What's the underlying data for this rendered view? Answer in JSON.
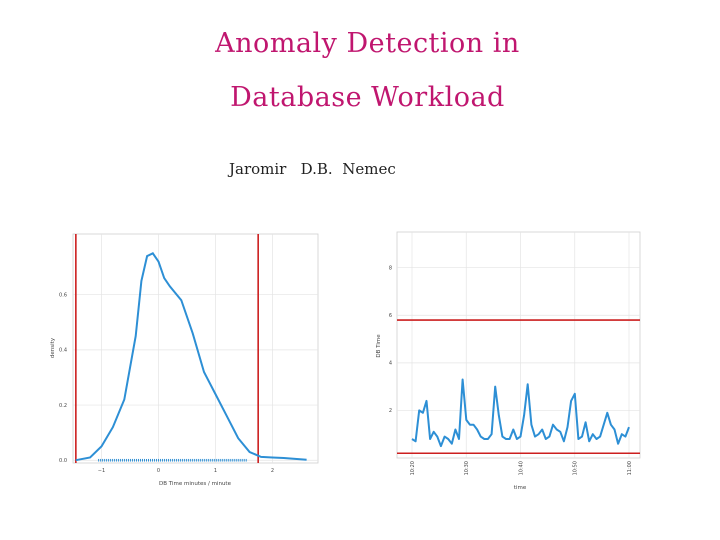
{
  "slide": {
    "title_line1": "Anomaly Detection in",
    "title_line2": "Database Workload",
    "author": "Jaromir   D.B.  Nemec"
  },
  "chart_data": [
    {
      "type": "line",
      "title": "",
      "xlabel": "DB Time minutes / minute",
      "ylabel": "density",
      "xlim": [
        -1.5,
        2.8
      ],
      "ylim": [
        -0.01,
        0.82
      ],
      "x_ticks": [
        -1,
        0,
        1,
        2
      ],
      "y_ticks": [
        0.0,
        0.2,
        0.4,
        0.6
      ],
      "y_tick_labels": [
        "0.0",
        "0.2",
        "0.4",
        "0.6"
      ],
      "grid": true,
      "series": [
        {
          "values_x": [
            -1.45,
            -1.2,
            -1.0,
            -0.8,
            -0.6,
            -0.4,
            -0.3,
            -0.2,
            -0.1,
            0.0,
            0.1,
            0.2,
            0.4,
            0.6,
            0.8,
            1.0,
            1.2,
            1.4,
            1.6,
            1.8,
            2.0,
            2.2,
            2.4,
            2.6
          ],
          "values_y": [
            0.0,
            0.01,
            0.05,
            0.12,
            0.22,
            0.45,
            0.65,
            0.74,
            0.75,
            0.72,
            0.66,
            0.63,
            0.58,
            0.46,
            0.32,
            0.24,
            0.16,
            0.08,
            0.03,
            0.012,
            0.01,
            0.008,
            0.005,
            0.002
          ]
        }
      ],
      "rug_x_range": [
        -1.05,
        1.55
      ],
      "reference_lines_x": [
        -1.45,
        1.75
      ],
      "colors": {
        "series": "#2d8fd5",
        "reference": "#cc1f1f",
        "grid": "#e4e4e4"
      }
    },
    {
      "type": "line",
      "title": "",
      "xlabel": "time",
      "ylabel": "DB Time",
      "ylim": [
        0,
        9.5
      ],
      "y_ticks": [
        2,
        4,
        6,
        8
      ],
      "y_tick_labels": [
        "2",
        "4",
        "6",
        "8"
      ],
      "x_tick_labels": [
        "10:20",
        "10:30",
        "10:40",
        "10:50",
        "11:00"
      ],
      "grid": true,
      "series": [
        {
          "values": [
            0.8,
            0.7,
            2.0,
            1.9,
            2.4,
            0.8,
            1.1,
            0.9,
            0.5,
            0.9,
            0.8,
            0.6,
            1.2,
            0.8,
            3.3,
            1.6,
            1.4,
            1.4,
            1.2,
            0.9,
            0.8,
            0.8,
            1.0,
            3.0,
            1.8,
            0.9,
            0.8,
            0.8,
            1.2,
            0.8,
            0.9,
            1.8,
            3.1,
            1.4,
            0.9,
            1.0,
            1.2,
            0.8,
            0.9,
            1.4,
            1.2,
            1.1,
            0.7,
            1.3,
            2.4,
            2.7,
            0.8,
            0.9,
            1.5,
            0.7,
            1.0,
            0.8,
            0.9,
            1.4,
            1.9,
            1.4,
            1.2,
            0.6,
            1.0,
            0.9,
            1.3
          ]
        }
      ],
      "reference_lines_y": [
        5.8,
        0.2
      ],
      "colors": {
        "series": "#2d8fd5",
        "reference": "#cc1f1f",
        "grid": "#e4e4e4"
      }
    }
  ]
}
